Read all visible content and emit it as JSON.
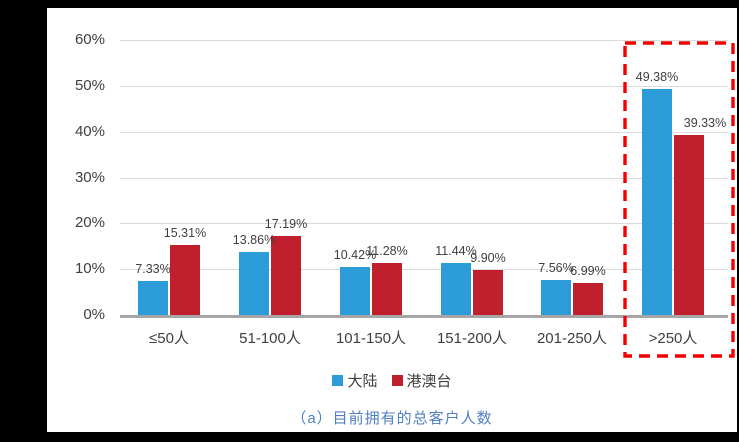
{
  "page": {
    "background_color": "#000000",
    "canvas_color": "#FFFFFF"
  },
  "chart_data": {
    "type": "bar",
    "title": "（a）目前拥有的总客户人数",
    "title_color": "#4F7FC4",
    "categories": [
      "≤50人",
      "51-100人",
      "101-150人",
      "151-200人",
      "201-250人",
      ">250人"
    ],
    "series": [
      {
        "name": "大陆",
        "color": "#2B9CD8",
        "values": [
          7.33,
          13.86,
          10.42,
          11.44,
          7.56,
          49.38
        ]
      },
      {
        "name": "港澳台",
        "color": "#C0202E",
        "values": [
          15.31,
          17.19,
          11.28,
          9.9,
          6.99,
          39.33
        ]
      }
    ],
    "data_labels": [
      [
        "7.33%",
        "13.86%",
        "10.42%",
        "11.44%",
        "7.56%",
        "49.38%"
      ],
      [
        "15.31%",
        "17.19%",
        "11.28%",
        "9.90%",
        "6.99%",
        "39.33%"
      ]
    ],
    "y_ticks": [
      "60%",
      "50%",
      "40%",
      "30%",
      "20%",
      "10%",
      "0%"
    ],
    "ylim": [
      0,
      60
    ],
    "grid": true,
    "xlabel": "",
    "ylabel": "",
    "legend_position": "bottom",
    "axis_line_color": "#A6A6A6",
    "gridline_color": "#DBDBDB",
    "label_text_color": "#3F3F3F",
    "highlight": {
      "category": ">250人",
      "shape": "dashed-rectangle",
      "color": "#F50000"
    }
  }
}
